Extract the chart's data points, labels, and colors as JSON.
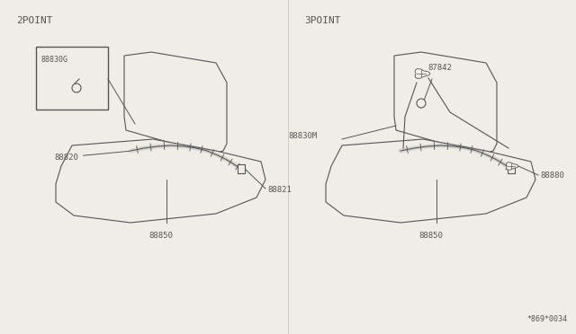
{
  "bg_color": "#f0ede8",
  "line_color": "#555555",
  "text_color": "#555555",
  "fig_width": 6.4,
  "fig_height": 3.72,
  "left_label": "2POINT",
  "right_label": "3POINT",
  "watermark": "*869*0034"
}
